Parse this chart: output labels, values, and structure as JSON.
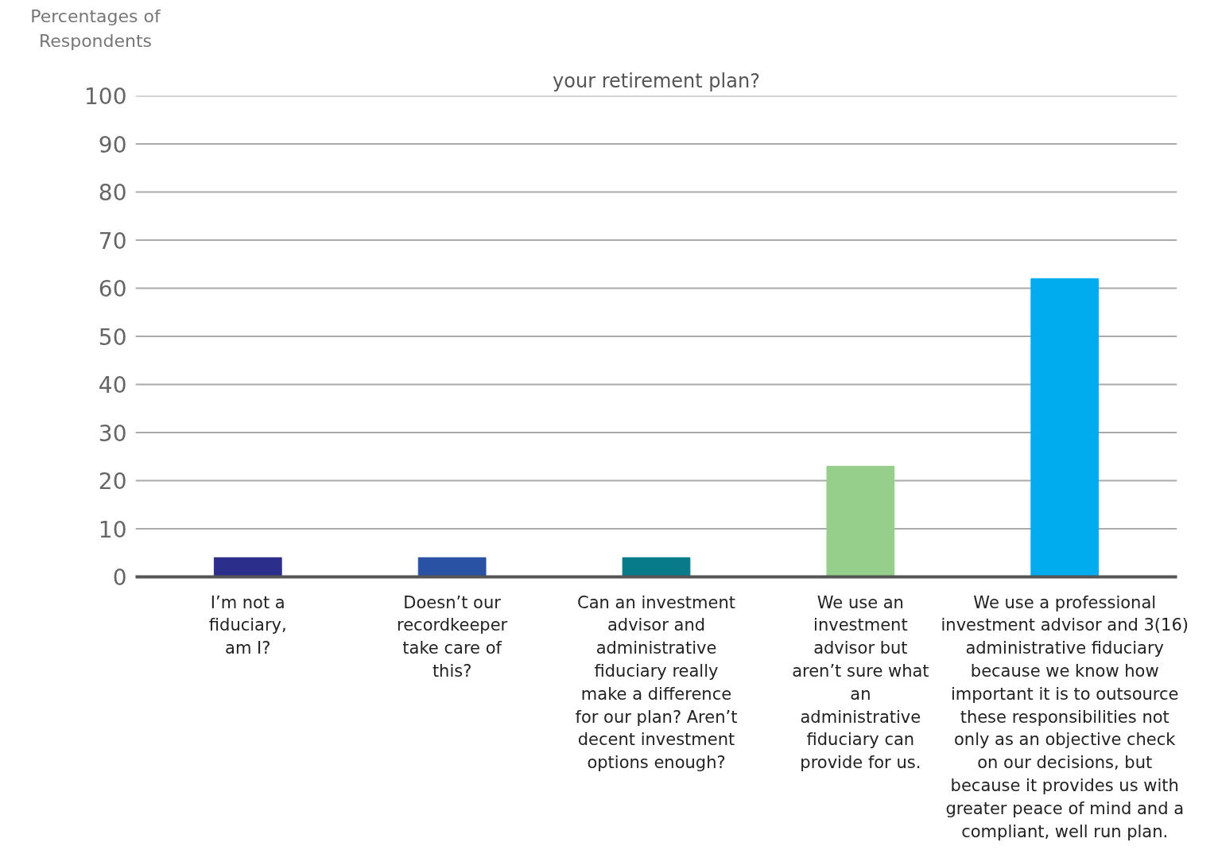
{
  "chart_data": {
    "type": "bar",
    "title": "your retirement plan?",
    "ylabel": "Percentages of Respondents",
    "categories": [
      "I’m not a fiduciary, am I?",
      "Doesn’t our recordkeeper take care of this?",
      "Can an investment advisor and administrative fiduciary really make a difference for our plan? Aren’t decent investment options enough?",
      "We use an investment advisor but aren’t sure what an administrative fiduciary can provide for us.",
      "We use a professional investment advisor and 3(16) administrative fiduciary because we know how important it is to outsource these responsibilities not only as an objective check on our decisions, but because it provides us with greater peace of mind and a compliant, well run plan."
    ],
    "values": [
      4,
      4,
      4,
      23,
      62
    ],
    "colors": [
      "#2b2e8a",
      "#2a52a4",
      "#087b8a",
      "#95cf8b",
      "#00aced"
    ],
    "ylim": [
      0,
      100
    ],
    "yticks": [
      0,
      10,
      20,
      30,
      40,
      50,
      60,
      70,
      80,
      90,
      100
    ],
    "grid": "y"
  }
}
